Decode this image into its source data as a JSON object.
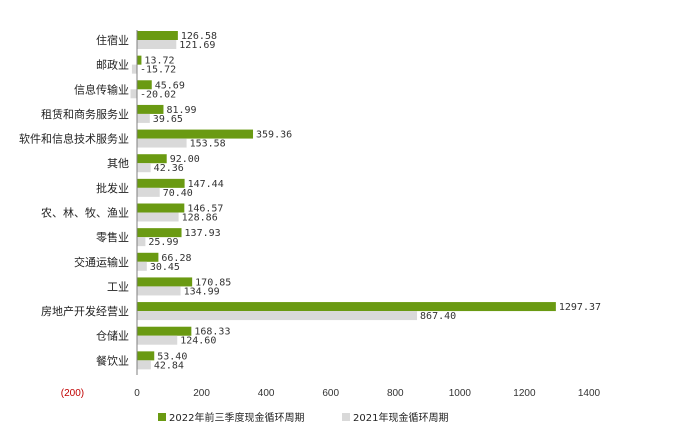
{
  "chart_data": {
    "type": "bar",
    "orientation": "horizontal",
    "categories": [
      "住宿业",
      "邮政业",
      "信息传输业",
      "租赁和商务服务业",
      "软件和信息技术服务业",
      "其他",
      "批发业",
      "农、林、牧、渔业",
      "零售业",
      "交通运输业",
      "工业",
      "房地产开发经营业",
      "仓储业",
      "餐饮业"
    ],
    "series": [
      {
        "name": "2022年前三季度现金循环周期",
        "color": "#6a9a12",
        "values": [
          126.58,
          13.72,
          45.69,
          81.99,
          359.36,
          92.0,
          147.44,
          146.57,
          137.93,
          66.28,
          170.85,
          1297.37,
          168.33,
          53.4
        ],
        "labels": [
          "126.58",
          "13.72",
          "45.69",
          "81.99",
          "359.36",
          "92.00",
          "147.44",
          "146.57",
          "137.93",
          "66.28",
          "170.85",
          "1297.37",
          "168.33",
          "53.40"
        ]
      },
      {
        "name": "2021年现金循环周期",
        "color": "#d9d9d9",
        "values": [
          121.69,
          -15.72,
          -20.02,
          39.65,
          153.58,
          42.36,
          70.4,
          128.86,
          25.99,
          30.45,
          134.99,
          867.4,
          124.6,
          42.84
        ],
        "labels": [
          "121.69",
          "-15.72",
          "-20.02",
          "39.65",
          "153.58",
          "42.36",
          "70.40",
          "128.86",
          "25.99",
          "30.45",
          "134.99",
          "867.40",
          "124.60",
          "42.84"
        ]
      }
    ],
    "xlim": [
      -200,
      1400
    ],
    "xticks": [
      -200,
      0,
      200,
      400,
      600,
      800,
      1000,
      1200,
      1400
    ],
    "xtick_labels": [
      "(200)",
      "0",
      "200",
      "400",
      "600",
      "800",
      "1000",
      "1200",
      "1400"
    ],
    "title": "",
    "xlabel": "",
    "ylabel": "",
    "grid": false,
    "legend_position": "bottom"
  }
}
